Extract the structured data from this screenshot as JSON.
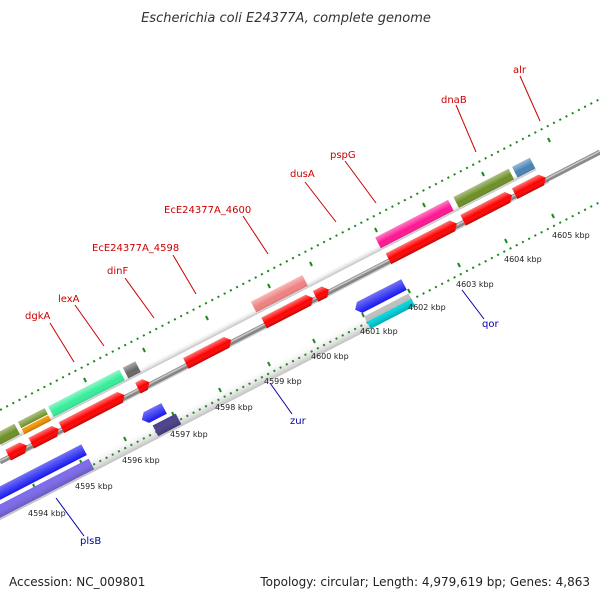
{
  "title": "Escherichia coli E24377A, complete genome",
  "footer": {
    "accession": "Accession: NC_009801",
    "summary": "Topology: circular; Length: 4,979,619 bp; Genes: 4,863"
  },
  "colors": {
    "forward_label": "#cc0000",
    "reverse_label": "#0000aa",
    "backbone": "#808080",
    "tick": "#1a8a1a"
  },
  "gene_labels_top": [
    "dgkA",
    "lexA",
    "dinF",
    "EcE24377A_4598",
    "EcE24377A_4600",
    "dusA",
    "pspG",
    "dnaB",
    "alr"
  ],
  "gene_labels_bottom": [
    "plsB",
    "zur",
    "qor"
  ],
  "scale_labels": [
    "4594 kbp",
    "4595 kbp",
    "4596 kbp",
    "4597 kbp",
    "4598 kbp",
    "4599 kbp",
    "4600 kbp",
    "4601 kbp",
    "4602 kbp",
    "4603 kbp",
    "4604 kbp",
    "4605 kbp"
  ]
}
